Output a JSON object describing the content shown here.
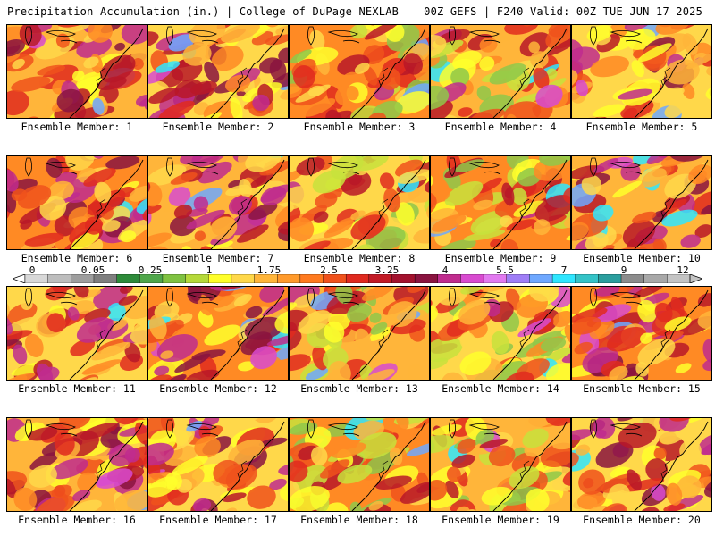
{
  "header": {
    "title_left": "Precipitation Accumulation (in.) | College of DuPage NEXLAB",
    "title_right": "00Z GEFS | F240 Valid: 00Z TUE JUN 17 2025"
  },
  "colorbar": {
    "labels": [
      "0",
      "0.05",
      "0.25",
      "1",
      "1.75",
      "2.5",
      "3.25",
      "4",
      "5.5",
      "7",
      "9",
      "12"
    ],
    "colors": [
      "#d8d8d8",
      "#bdbdbd",
      "#9e9e9e",
      "#7f7f7f",
      "#2e8b3a",
      "#4fa64a",
      "#7fc241",
      "#b5d93a",
      "#ffff2b",
      "#ffd84a",
      "#ffb53a",
      "#ff9a2b",
      "#ff7a1f",
      "#f0521c",
      "#e02a1f",
      "#c21a25",
      "#a3122e",
      "#8a1440",
      "#c02c8e",
      "#d84bd0",
      "#e27af0",
      "#9f7ef6",
      "#6fa8ff",
      "#2fe6ff",
      "#34c3c7",
      "#2b9e9e",
      "#8c8c8c",
      "#a8a8a8",
      "#c4c4c4"
    ]
  },
  "members": [
    {
      "label": "Ensemble Member: 1"
    },
    {
      "label": "Ensemble Member: 2"
    },
    {
      "label": "Ensemble Member: 3"
    },
    {
      "label": "Ensemble Member: 4"
    },
    {
      "label": "Ensemble Member: 5"
    },
    {
      "label": "Ensemble Member: 6"
    },
    {
      "label": "Ensemble Member: 7"
    },
    {
      "label": "Ensemble Member: 8"
    },
    {
      "label": "Ensemble Member: 9"
    },
    {
      "label": "Ensemble Member: 10"
    },
    {
      "label": "Ensemble Member: 11"
    },
    {
      "label": "Ensemble Member: 12"
    },
    {
      "label": "Ensemble Member: 13"
    },
    {
      "label": "Ensemble Member: 14"
    },
    {
      "label": "Ensemble Member: 15"
    },
    {
      "label": "Ensemble Member: 16"
    },
    {
      "label": "Ensemble Member: 17"
    },
    {
      "label": "Ensemble Member: 18"
    },
    {
      "label": "Ensemble Member: 19"
    },
    {
      "label": "Ensemble Member: 20"
    }
  ]
}
